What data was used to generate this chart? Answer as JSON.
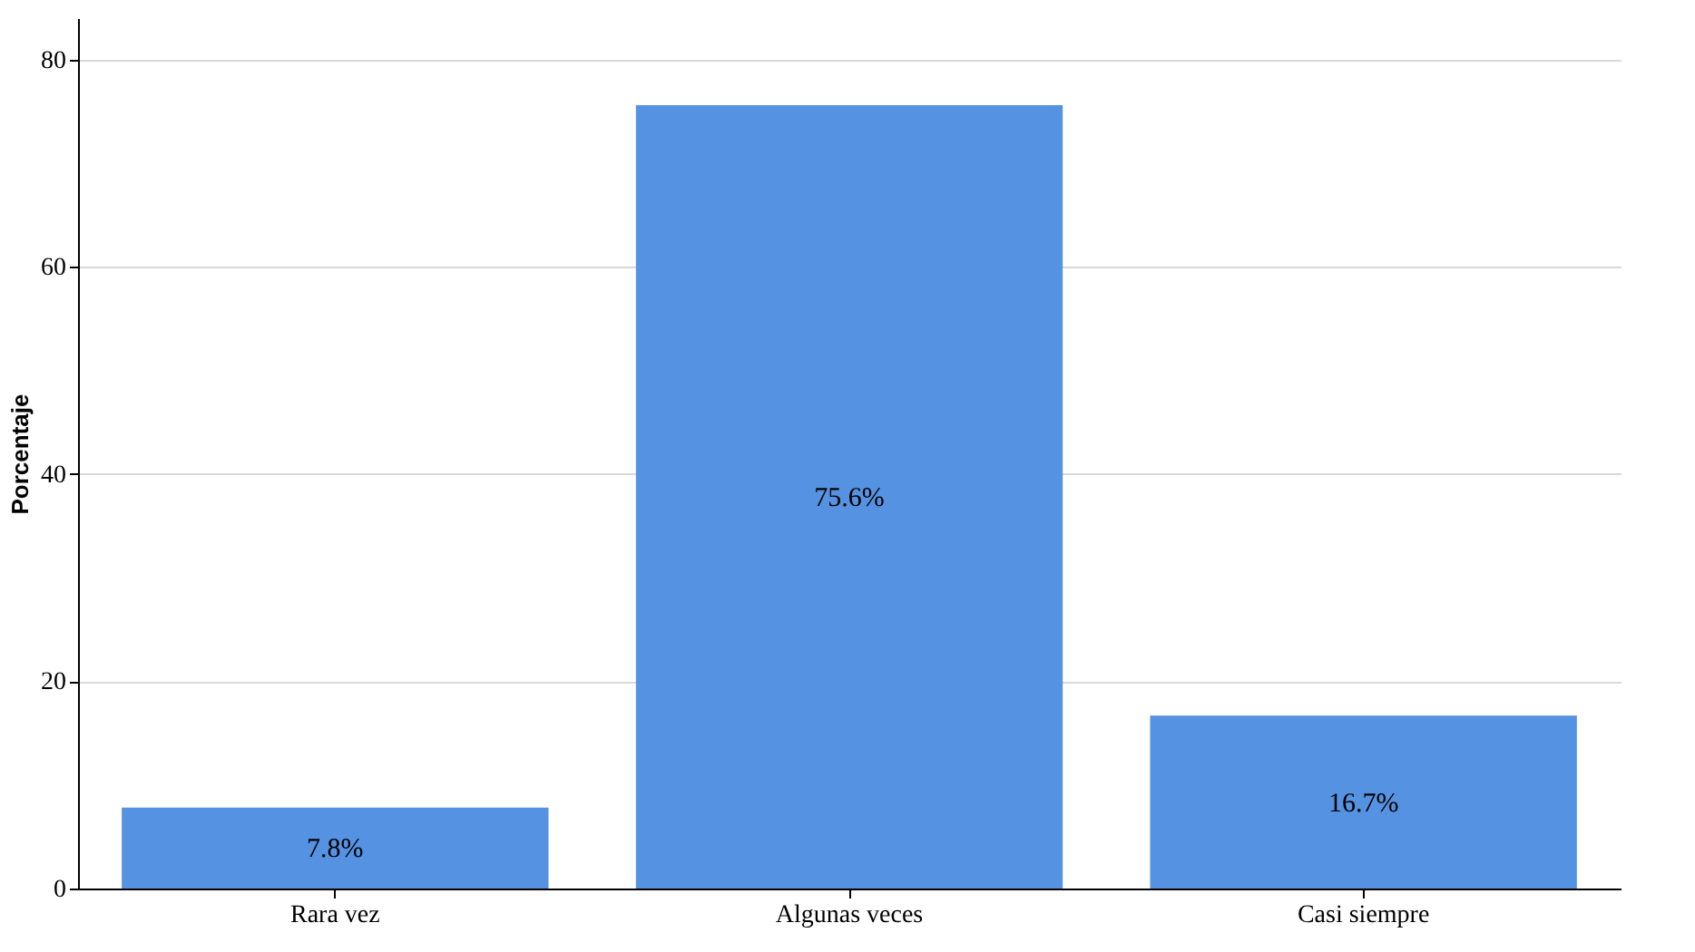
{
  "chart_data": {
    "type": "bar",
    "ylabel": "Porcentaje",
    "categories": [
      "Rara vez",
      "Algunas veces",
      "Casi siempre"
    ],
    "values": [
      7.8,
      75.6,
      16.7
    ],
    "color": "#5592e1",
    "value_labels": [
      "7.8%",
      "75.6%",
      "16.7%"
    ],
    "ylim": [
      0,
      84
    ],
    "yticks": [
      0,
      20,
      40,
      60,
      80
    ],
    "grid": "y"
  }
}
